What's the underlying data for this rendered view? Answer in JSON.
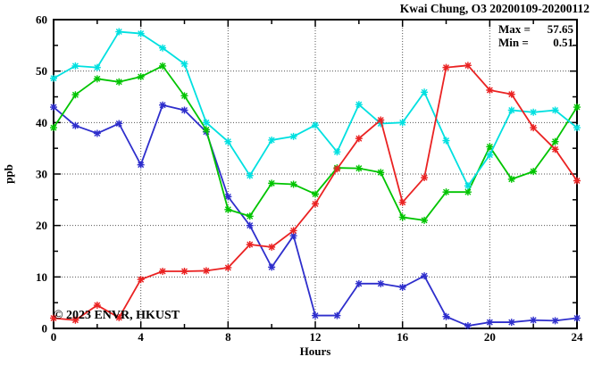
{
  "title": "Kwai Chung, O3 20200109-20200112",
  "stats": {
    "max_label": "Max =",
    "max_value": "57.65",
    "min_label": "Min =",
    "min_value": "0.51"
  },
  "watermark": "© 2023 ENVR, HKUST",
  "chart_data": {
    "type": "line",
    "title": "Kwai Chung, O3 20200109-20200112",
    "xlabel": "Hours",
    "ylabel": "ppb",
    "xlim": [
      0,
      24
    ],
    "ylim": [
      0,
      60
    ],
    "x_ticks": [
      0,
      4,
      8,
      12,
      16,
      20,
      24
    ],
    "x_minor_step": 2,
    "y_ticks": [
      0,
      10,
      20,
      30,
      40,
      50,
      60
    ],
    "y_minor_step": 5,
    "grid": "dotted",
    "legend_position": "none",
    "annotations": [
      "Max = 57.65",
      "Min = 0.51"
    ],
    "axis_color": "#000000",
    "grid_color": "#555555",
    "watermark_color": "#d9d9d9",
    "x": [
      0,
      1,
      2,
      3,
      4,
      5,
      6,
      7,
      8,
      9,
      10,
      11,
      12,
      13,
      14,
      15,
      16,
      17,
      18,
      19,
      20,
      21,
      22,
      23,
      24
    ],
    "series": [
      {
        "name": "blue",
        "color": "#2e2ecc",
        "marker": "star",
        "values": [
          43.0,
          39.4,
          37.9,
          39.8,
          31.8,
          43.4,
          42.4,
          38.2,
          25.6,
          20.0,
          11.9,
          18.0,
          2.5,
          2.5,
          8.7,
          8.7,
          8.0,
          10.2,
          2.3,
          0.51,
          1.2,
          1.2,
          1.6,
          1.5,
          2.0
        ]
      },
      {
        "name": "green",
        "color": "#00c400",
        "marker": "star",
        "values": [
          39.0,
          45.4,
          48.5,
          47.9,
          48.9,
          51.0,
          45.2,
          38.6,
          23.1,
          21.8,
          28.2,
          28.0,
          26.1,
          31.2,
          31.1,
          30.3,
          21.6,
          21.0,
          26.5,
          26.5,
          35.3,
          29.0,
          30.5,
          36.3,
          43.0
        ]
      },
      {
        "name": "cyan",
        "color": "#00e0e0",
        "marker": "star",
        "values": [
          48.6,
          51.0,
          50.7,
          57.65,
          57.3,
          54.5,
          51.4,
          40.0,
          36.3,
          29.7,
          36.6,
          37.3,
          39.5,
          34.3,
          43.5,
          39.8,
          40.0,
          45.9,
          36.5,
          27.7,
          33.7,
          42.4,
          42.0,
          42.4,
          39.0
        ]
      },
      {
        "name": "red",
        "color": "#ea2222",
        "marker": "star",
        "values": [
          2.0,
          1.6,
          4.5,
          2.1,
          9.5,
          11.1,
          11.1,
          11.2,
          11.8,
          16.3,
          15.8,
          19.0,
          24.2,
          31.0,
          36.9,
          40.5,
          24.5,
          29.3,
          50.7,
          51.1,
          46.3,
          45.5,
          39.0,
          34.8,
          28.7
        ]
      }
    ]
  }
}
